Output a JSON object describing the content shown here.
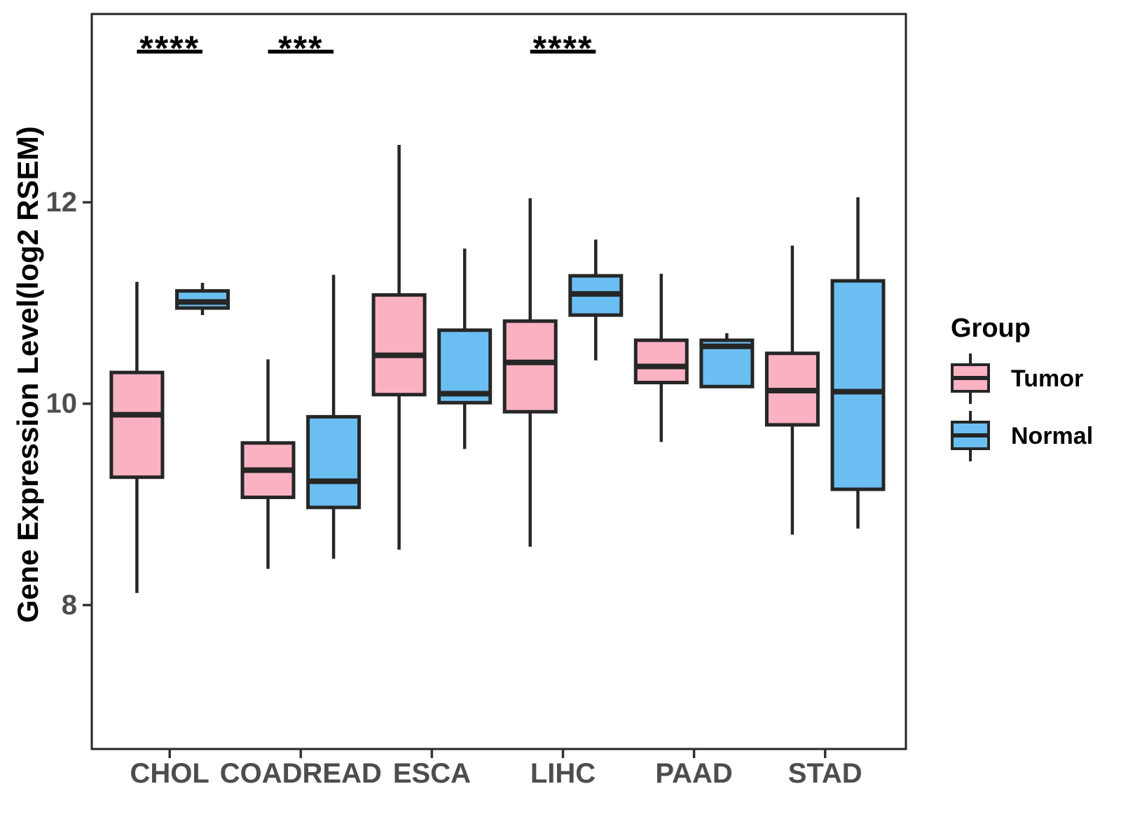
{
  "legend": {
    "title": "Group",
    "entries": [
      {
        "label": "Tumor",
        "color": "#FAB2C3"
      },
      {
        "label": "Normal",
        "color": "#6BBEF2"
      }
    ]
  },
  "chart_data": {
    "type": "boxplot",
    "title": "",
    "xlabel": "",
    "ylabel": "Gene Expression Level(log2 RSEM)",
    "categories": [
      "CHOL",
      "COADREAD",
      "ESCA",
      "LIHC",
      "PAAD",
      "STAD"
    ],
    "y_ticks": [
      8,
      10,
      12
    ],
    "ylim": [
      6.6,
      13.9
    ],
    "grid": false,
    "legend_position": "right",
    "series": [
      {
        "name": "Tumor",
        "color": "#FAB2C3",
        "boxes": [
          {
            "category": "CHOL",
            "whisker_low": 8.12,
            "q1": 9.27,
            "median": 9.89,
            "q3": 10.31,
            "whisker_high": 11.21
          },
          {
            "category": "COADREAD",
            "whisker_low": 8.36,
            "q1": 9.07,
            "median": 9.34,
            "q3": 9.61,
            "whisker_high": 10.44
          },
          {
            "category": "ESCA",
            "whisker_low": 8.55,
            "q1": 10.09,
            "median": 10.48,
            "q3": 11.08,
            "whisker_high": 12.57
          },
          {
            "category": "LIHC",
            "whisker_low": 8.58,
            "q1": 9.92,
            "median": 10.41,
            "q3": 10.82,
            "whisker_high": 12.04
          },
          {
            "category": "PAAD",
            "whisker_low": 9.62,
            "q1": 10.21,
            "median": 10.37,
            "q3": 10.63,
            "whisker_high": 11.29
          },
          {
            "category": "STAD",
            "whisker_low": 8.7,
            "q1": 9.79,
            "median": 10.13,
            "q3": 10.5,
            "whisker_high": 11.57
          }
        ]
      },
      {
        "name": "Normal",
        "color": "#6BBEF2",
        "boxes": [
          {
            "category": "CHOL",
            "whisker_low": 10.88,
            "q1": 10.95,
            "median": 11.01,
            "q3": 11.12,
            "whisker_high": 11.2
          },
          {
            "category": "COADREAD",
            "whisker_low": 8.46,
            "q1": 8.97,
            "median": 9.23,
            "q3": 9.87,
            "whisker_high": 11.28
          },
          {
            "category": "ESCA",
            "whisker_low": 9.55,
            "q1": 10.01,
            "median": 10.1,
            "q3": 10.73,
            "whisker_high": 11.54
          },
          {
            "category": "LIHC",
            "whisker_low": 10.43,
            "q1": 10.88,
            "median": 11.09,
            "q3": 11.27,
            "whisker_high": 11.63
          },
          {
            "category": "PAAD",
            "whisker_low": 10.16,
            "q1": 10.17,
            "median": 10.57,
            "q3": 10.63,
            "whisker_high": 10.7
          },
          {
            "category": "STAD",
            "whisker_low": 8.76,
            "q1": 9.15,
            "median": 10.12,
            "q3": 11.22,
            "whisker_high": 12.05
          }
        ]
      }
    ],
    "significance": [
      {
        "category": "CHOL",
        "label": "****"
      },
      {
        "category": "COADREAD",
        "label": "***"
      },
      {
        "category": "LIHC",
        "label": "****"
      }
    ]
  }
}
